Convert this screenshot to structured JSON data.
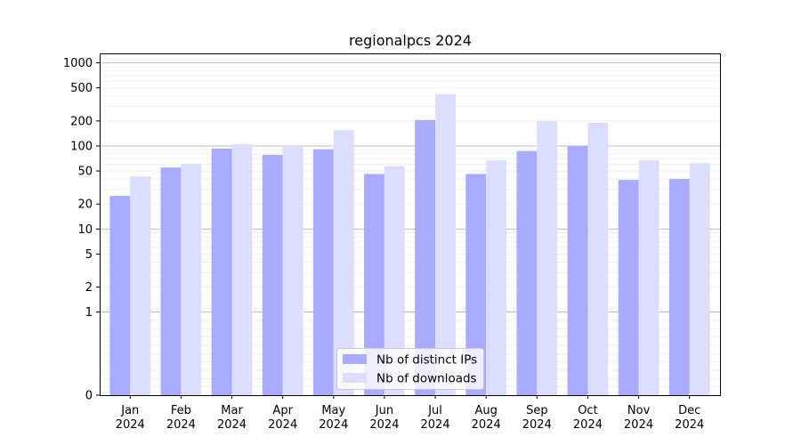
{
  "chart_data": {
    "type": "bar",
    "title": "regionalpcs 2024",
    "xlabel": "",
    "ylabel": "",
    "yscale": "symlog",
    "ylim": [
      0,
      1300
    ],
    "yticks": [
      0,
      1,
      2,
      5,
      10,
      20,
      50,
      100,
      200,
      500,
      1000
    ],
    "ytick_labels": [
      "0",
      "1",
      "2",
      "5",
      "10",
      "20",
      "50",
      "100",
      "200",
      "500",
      "1000"
    ],
    "grid": true,
    "legend_position": "bottom-center",
    "categories": [
      [
        "Jan",
        "2024"
      ],
      [
        "Feb",
        "2024"
      ],
      [
        "Mar",
        "2024"
      ],
      [
        "Apr",
        "2024"
      ],
      [
        "May",
        "2024"
      ],
      [
        "Jun",
        "2024"
      ],
      [
        "Jul",
        "2024"
      ],
      [
        "Aug",
        "2024"
      ],
      [
        "Sep",
        "2024"
      ],
      [
        "Oct",
        "2024"
      ],
      [
        "Nov",
        "2024"
      ],
      [
        "Dec",
        "2024"
      ]
    ],
    "series": [
      {
        "name": "Nb of distinct IPs",
        "color": "#aaaaff",
        "values": [
          25,
          55,
          93,
          78,
          91,
          46,
          205,
          46,
          87,
          99,
          39,
          40
        ]
      },
      {
        "name": "Nb of downloads",
        "color": "#ddddff",
        "values": [
          43,
          61,
          105,
          100,
          155,
          57,
          420,
          67,
          200,
          190,
          67,
          62
        ]
      }
    ]
  }
}
